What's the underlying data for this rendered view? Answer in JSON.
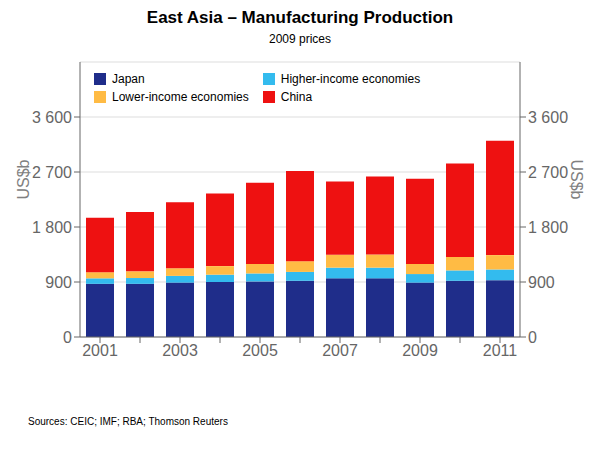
{
  "chart_data": {
    "type": "bar",
    "title": "East Asia – Manufacturing Production",
    "subtitle": "2009 prices",
    "ylabel": "US$b",
    "y2label": "US$b",
    "source": "Sources: CEIC; IMF; RBA; Thomson Reuters",
    "stacked": true,
    "grid": true,
    "legend": "upper left",
    "categories": [
      "2001",
      null,
      "2003",
      null,
      "2005",
      null,
      "2007",
      null,
      "2009",
      null,
      "2011"
    ],
    "series": [
      {
        "name": "Japan",
        "color": "#1F2D8A",
        "values": [
          870,
          870,
          890,
          900,
          910,
          920,
          960,
          960,
          890,
          920,
          930
        ]
      },
      {
        "name": "Higher-income economies",
        "color": "#33BBEE",
        "values": [
          90,
          95,
          110,
          120,
          130,
          145,
          175,
          175,
          140,
          170,
          175
        ]
      },
      {
        "name": "Lower-income economies",
        "color": "#FFBB44",
        "values": [
          100,
          110,
          125,
          140,
          155,
          175,
          210,
          215,
          165,
          220,
          235
        ]
      },
      {
        "name": "China",
        "color": "#EE1111",
        "values": [
          890,
          970,
          1080,
          1190,
          1330,
          1475,
          1200,
          1275,
          1395,
          1530,
          1870
        ]
      }
    ],
    "ylim": [
      0,
      4500
    ],
    "yticks": [
      0,
      900,
      {
        "value": 1800,
        "label": "1 800"
      },
      {
        "value": 2700,
        "label": "2 700"
      },
      {
        "value": 3600,
        "label": "3 600"
      }
    ],
    "y2lim": [
      0,
      4500
    ],
    "y2ticks": [
      0,
      900,
      {
        "value": 1800,
        "label": "1 800"
      },
      {
        "value": 2700,
        "label": "2 700"
      },
      {
        "value": 3600,
        "label": "3 600"
      }
    ]
  }
}
